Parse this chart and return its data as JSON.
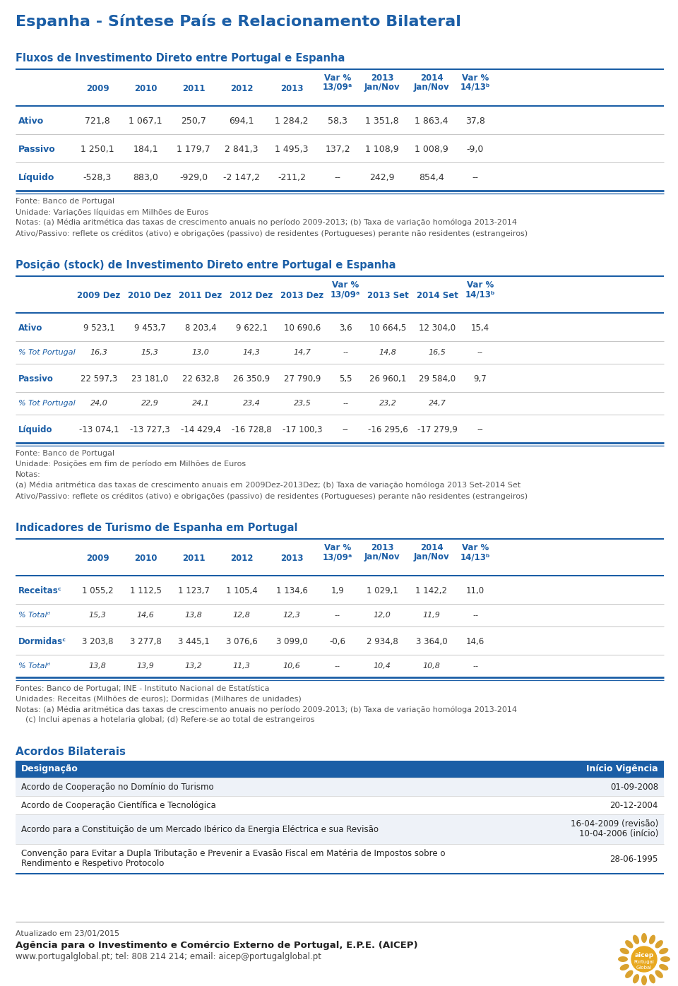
{
  "main_title": "Espanha - Síntese País e Relacionamento Bilateral",
  "section1_title": "Fluxos de Investimento Direto entre Portugal e Espanha",
  "section1_headers": [
    "",
    "2009",
    "2010",
    "2011",
    "2012",
    "2013",
    "Var %\n13/09ᵃ",
    "2013\nJan/Nov",
    "2014\nJan/Nov",
    "Var %\n14/13ᵇ"
  ],
  "section1_rows": [
    [
      "Ativo",
      "721,8",
      "1 067,1",
      "250,7",
      "694,1",
      "1 284,2",
      "58,3",
      "1 351,8",
      "1 863,4",
      "37,8"
    ],
    [
      "Passivo",
      "1 250,1",
      "184,1",
      "1 179,7",
      "2 841,3",
      "1 495,3",
      "137,2",
      "1 108,9",
      "1 008,9",
      "-9,0"
    ],
    [
      "Líquido",
      "-528,3",
      "883,0",
      "-929,0",
      "-2 147,2",
      "-211,2",
      "--",
      "242,9",
      "854,4",
      "--"
    ]
  ],
  "section1_bold": [
    true,
    true,
    true
  ],
  "section1_notes": [
    "Fonte: Banco de Portugal",
    "Unidade: Variações líquidas em Milhões de Euros",
    "Notas: (a) Média aritmética das taxas de crescimento anuais no período 2009-2013; (b) Taxa de variação homóloga 2013-2014",
    "Ativo/Passivo: reflete os créditos (ativo) e obrigações (passivo) de residentes (Portugueses) perante não residentes (estrangeiros)"
  ],
  "section2_title": "Posição (stock) de Investimento Direto entre Portugal e Espanha",
  "section2_headers": [
    "",
    "2009 Dez",
    "2010 Dez",
    "2011 Dez",
    "2012 Dez",
    "2013 Dez",
    "Var %\n13/09ᵃ",
    "2013 Set",
    "2014 Set",
    "Var %\n14/13ᵇ"
  ],
  "section2_rows": [
    [
      "Ativo",
      "9 523,1",
      "9 453,7",
      "8 203,4",
      "9 622,1",
      "10 690,6",
      "3,6",
      "10 664,5",
      "12 304,0",
      "15,4"
    ],
    [
      "% Tot Portugal",
      "16,3",
      "15,3",
      "13,0",
      "14,3",
      "14,7",
      "--",
      "14,8",
      "16,5",
      "--"
    ],
    [
      "Passivo",
      "22 597,3",
      "23 181,0",
      "22 632,8",
      "26 350,9",
      "27 790,9",
      "5,5",
      "26 960,1",
      "29 584,0",
      "9,7"
    ],
    [
      "% Tot Portugal",
      "24,0",
      "22,9",
      "24,1",
      "23,4",
      "23,5",
      "--",
      "23,2",
      "24,7",
      ""
    ],
    [
      "Líquido",
      "-13 074,1",
      "-13 727,3",
      "-14 429,4",
      "-16 728,8",
      "-17 100,3",
      "--",
      "-16 295,6",
      "-17 279,9",
      "--"
    ]
  ],
  "section2_italic_rows": [
    1,
    3
  ],
  "section2_notes": [
    "Fonte: Banco de Portugal",
    "Unidade: Posições em fim de período em Milhões de Euros",
    "Notas:",
    "(a) Média aritmética das taxas de crescimento anuais em 2009Dez-2013Dez; (b) Taxa de variação homóloga 2013 Set-2014 Set",
    "Ativo/Passivo: reflete os créditos (ativo) e obrigações (passivo) de residentes (Portugueses) perante não residentes (estrangeiros)"
  ],
  "section3_title": "Indicadores de Turismo de Espanha em Portugal",
  "section3_headers": [
    "",
    "2009",
    "2010",
    "2011",
    "2012",
    "2013",
    "Var %\n13/09ᵃ",
    "2013\nJan/Nov",
    "2014\nJan/Nov",
    "Var %\n14/13ᵇ"
  ],
  "section3_rows": [
    [
      "Receitasᶜ",
      "1 055,2",
      "1 112,5",
      "1 123,7",
      "1 105,4",
      "1 134,6",
      "1,9",
      "1 029,1",
      "1 142,2",
      "11,0"
    ],
    [
      "% Totalᵈ",
      "15,3",
      "14,6",
      "13,8",
      "12,8",
      "12,3",
      "--",
      "12,0",
      "11,9",
      "--"
    ],
    [
      "Dormidasᶜ",
      "3 203,8",
      "3 277,8",
      "3 445,1",
      "3 076,6",
      "3 099,0",
      "-0,6",
      "2 934,8",
      "3 364,0",
      "14,6"
    ],
    [
      "% Totalᵈ",
      "13,8",
      "13,9",
      "13,2",
      "11,3",
      "10,6",
      "--",
      "10,4",
      "10,8",
      "--"
    ]
  ],
  "section3_italic_rows": [
    1,
    3
  ],
  "section3_notes": [
    "Fontes: Banco de Portugal; INE - Instituto Nacional de Estatística",
    "Unidades: Receitas (Milhões de euros); Dormidas (Milhares de unidades)",
    "Notas: (a) Média aritmética das taxas de crescimento anuais no período 2009-2013; (b) Taxa de variação homóloga 2013-2014",
    "    (c) Inclui apenas a hotelaria global; (d) Refere-se ao total de estrangeiros"
  ],
  "section4_title": "Acordos Bilaterais",
  "section4_col1": "Designação",
  "section4_col2": "Início Vigência",
  "section4_rows": [
    [
      "Acordo de Cooperação no Domínio do Turismo",
      "01-09-2008"
    ],
    [
      "Acordo de Cooperação Científica e Tecnológica",
      "20-12-2004"
    ],
    [
      "Acordo para a Constituição de um Mercado Ibérico da Energia Eléctrica e sua Revisão",
      "16-04-2009 (revisão)\n10-04-2006 (início)"
    ],
    [
      "Convenção para Evitar a Dupla Tributação e Prevenir a Evasão Fiscal em Matéria de Impostos sobre o\nRendimento e Respetivo Protocolo",
      "28-06-1995"
    ]
  ],
  "footer_line1": "Atualizado em 23/01/2015",
  "footer_line2": "Agência para o Investimento e Comércio Externo de Portugal, E.P.E. (AICEP)",
  "footer_line3": "www.portugalglobal.pt; tel: 808 214 214; email: aicep@portugalglobal.pt",
  "color_blue": "#1B5EA6",
  "color_white": "#FFFFFF",
  "color_gray_line": "#AAAAAA",
  "color_text": "#333333",
  "color_note": "#555555"
}
